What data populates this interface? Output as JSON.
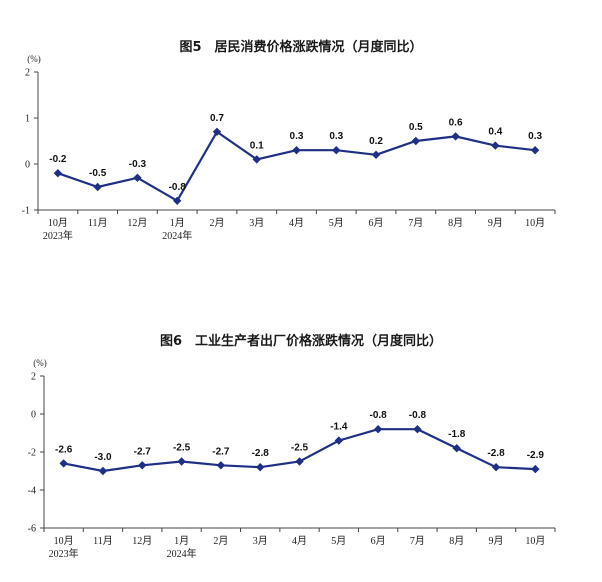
{
  "chart_data": [
    {
      "type": "line",
      "title": "图5　居民消费价格涨跌情况（月度同比）",
      "unit": "(%)",
      "categories": [
        "10月",
        "11月",
        "12月",
        "1月",
        "2月",
        "3月",
        "4月",
        "5月",
        "6月",
        "7月",
        "8月",
        "9月",
        "10月"
      ],
      "year_labels": [
        {
          "index": 0,
          "text": "2023年"
        },
        {
          "index": 3,
          "text": "2024年"
        }
      ],
      "ylim": [
        -1,
        2
      ],
      "yticks": [
        -1,
        0,
        1,
        2
      ],
      "series": [
        {
          "values": [
            -0.2,
            -0.5,
            -0.3,
            -0.8,
            0.7,
            0.1,
            0.3,
            0.3,
            0.2,
            0.5,
            0.6,
            0.4,
            0.3
          ],
          "labels": [
            "-0.2",
            "-0.5",
            "-0.3",
            "-0.8",
            "0.7",
            "0.1",
            "0.3",
            "0.3",
            "0.2",
            "0.5",
            "0.6",
            "0.4",
            "0.3"
          ]
        }
      ],
      "colors": {
        "line": "#1f2f86"
      },
      "grid": false
    },
    {
      "type": "line",
      "title": "图6　工业生产者出厂价格涨跌情况（月度同比）",
      "unit": "(%)",
      "categories": [
        "10月",
        "11月",
        "12月",
        "1月",
        "2月",
        "3月",
        "4月",
        "5月",
        "6月",
        "7月",
        "8月",
        "9月",
        "10月"
      ],
      "year_labels": [
        {
          "index": 0,
          "text": "2023年"
        },
        {
          "index": 3,
          "text": "2024年"
        }
      ],
      "ylim": [
        -6,
        2
      ],
      "yticks": [
        -6,
        -4,
        -2,
        0,
        2
      ],
      "series": [
        {
          "values": [
            -2.6,
            -3.0,
            -2.7,
            -2.5,
            -2.7,
            -2.8,
            -2.5,
            -1.4,
            -0.8,
            -0.8,
            -1.8,
            -2.8,
            -2.9
          ],
          "labels": [
            "-2.6",
            "-3.0",
            "-2.7",
            "-2.5",
            "-2.7",
            "-2.8",
            "-2.5",
            "-1.4",
            "-0.8",
            "-0.8",
            "-1.8",
            "-2.8",
            "-2.9"
          ]
        }
      ],
      "colors": {
        "line": "#1f2f86"
      },
      "grid": false
    }
  ]
}
